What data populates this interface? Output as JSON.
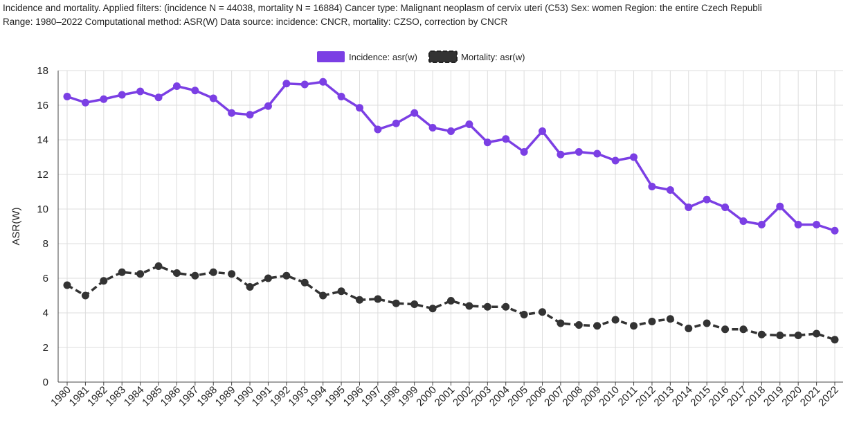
{
  "header": {
    "line1": "Incidence and mortality. Applied filters: (incidence N = 44038, mortality N = 16884) Cancer type: Malignant neoplasm of cervix uteri (C53) Sex: women Region: the entire Czech Republi",
    "line2": "Range: 1980–2022 Computational method: ASR(W) Data source: incidence: CNCR, mortality: CZSO, correction by CNCR"
  },
  "chart_data": {
    "type": "line",
    "title": "",
    "xlabel": "",
    "ylabel": "ASR(W)",
    "ylim": [
      0,
      18
    ],
    "yticks": [
      0,
      2,
      4,
      6,
      8,
      10,
      12,
      14,
      16,
      18
    ],
    "grid": true,
    "legend_position": "top-center",
    "x": [
      "1980",
      "1981",
      "1982",
      "1983",
      "1984",
      "1985",
      "1986",
      "1987",
      "1988",
      "1989",
      "1990",
      "1991",
      "1992",
      "1993",
      "1994",
      "1995",
      "1996",
      "1997",
      "1998",
      "1999",
      "2000",
      "2001",
      "2002",
      "2003",
      "2004",
      "2005",
      "2006",
      "2007",
      "2008",
      "2009",
      "2010",
      "2011",
      "2012",
      "2013",
      "2014",
      "2015",
      "2016",
      "2017",
      "2018",
      "2019",
      "2020",
      "2021",
      "2022"
    ],
    "series": [
      {
        "name": "Incidence: asr(w)",
        "color": "#7b3fe4",
        "style": "solid",
        "values": [
          16.5,
          16.15,
          16.35,
          16.6,
          16.8,
          16.45,
          17.1,
          16.85,
          16.4,
          15.55,
          15.45,
          15.95,
          17.25,
          17.2,
          17.35,
          16.5,
          15.85,
          14.6,
          14.95,
          15.55,
          14.7,
          14.5,
          14.9,
          13.85,
          14.05,
          13.3,
          14.5,
          13.15,
          13.3,
          13.2,
          12.8,
          13.0,
          11.3,
          11.1,
          10.1,
          10.55,
          10.1,
          9.3,
          9.1,
          10.15,
          9.1,
          9.1,
          8.75
        ]
      },
      {
        "name": "Mortality: asr(w)",
        "color": "#333333",
        "style": "dashed",
        "values": [
          5.6,
          5.0,
          5.85,
          6.35,
          6.25,
          6.7,
          6.3,
          6.15,
          6.35,
          6.25,
          5.5,
          6.0,
          6.15,
          5.75,
          5.0,
          5.25,
          4.75,
          4.8,
          4.55,
          4.5,
          4.25,
          4.7,
          4.4,
          4.35,
          4.35,
          3.9,
          4.05,
          3.4,
          3.3,
          3.25,
          3.6,
          3.25,
          3.5,
          3.65,
          3.1,
          3.4,
          3.05,
          3.05,
          2.75,
          2.7,
          2.7,
          2.8,
          2.45
        ]
      }
    ]
  }
}
